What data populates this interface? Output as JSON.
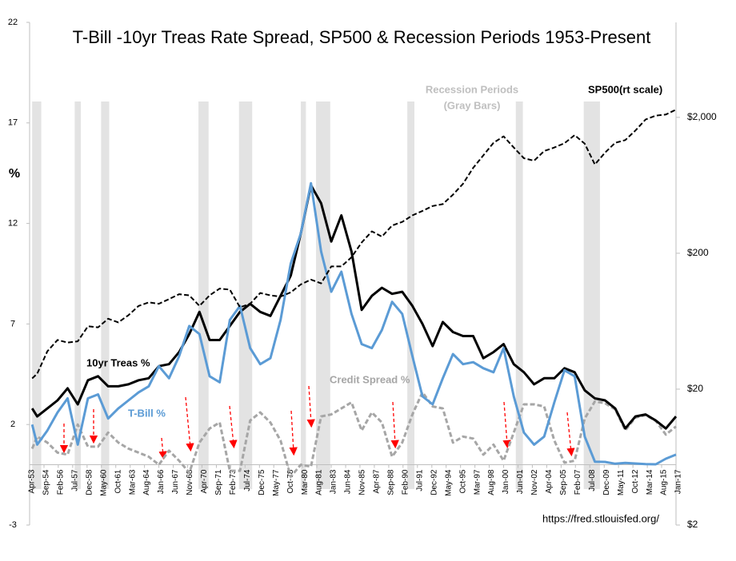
{
  "chart_data": {
    "type": "line",
    "title": "T-Bill -10yr Treas Rate Spread, SP500 & Recession Periods 1953-Present",
    "y_label": "%",
    "source": "https://fred.stlouisfed.org/",
    "recession_label": [
      "Recession Periods",
      "(Gray Bars)"
    ],
    "recession_color": "#e3e3e3",
    "recessions": [
      [
        1953.5,
        1954.4
      ],
      [
        1957.7,
        1958.3
      ],
      [
        1960.3,
        1961.1
      ],
      [
        1969.9,
        1970.9
      ],
      [
        1973.9,
        1975.2
      ],
      [
        1980.0,
        1980.5
      ],
      [
        1981.5,
        1982.9
      ],
      [
        1990.5,
        1991.2
      ],
      [
        2001.2,
        2001.9
      ],
      [
        2007.9,
        2009.5
      ]
    ],
    "x": [
      1953.5,
      1954,
      1955,
      1956,
      1957,
      1958,
      1959,
      1960,
      1961,
      1962,
      1963,
      1964,
      1965,
      1966,
      1967,
      1968,
      1969,
      1970,
      1971,
      1972,
      1973,
      1974,
      1975,
      1976,
      1977,
      1978,
      1979,
      1980,
      1981,
      1982,
      1983,
      1984,
      1985,
      1986,
      1987,
      1988,
      1989,
      1990,
      1991,
      1992,
      1993,
      1994,
      1995,
      1996,
      1997,
      1998,
      1999,
      2000,
      2001,
      2002,
      2003,
      2004,
      2005,
      2006,
      2007,
      2008,
      2009,
      2010,
      2011,
      2012,
      2013,
      2014,
      2015,
      2016,
      2017
    ],
    "xlim": [
      1953.25,
      2017.0
    ],
    "xticks": [
      {
        "value": 1953.25,
        "label": "Apr-53"
      },
      {
        "value": 1954.67,
        "label": "Sep-54"
      },
      {
        "value": 1956.08,
        "label": "Feb-56"
      },
      {
        "value": 1957.5,
        "label": "Jul-57"
      },
      {
        "value": 1958.92,
        "label": "Dec-58"
      },
      {
        "value": 1960.33,
        "label": "May-60"
      },
      {
        "value": 1961.75,
        "label": "Oct-61"
      },
      {
        "value": 1963.17,
        "label": "Mar-63"
      },
      {
        "value": 1964.58,
        "label": "Aug-64"
      },
      {
        "value": 1966.0,
        "label": "Jan-66"
      },
      {
        "value": 1967.42,
        "label": "Jun-67"
      },
      {
        "value": 1968.83,
        "label": "Nov-68"
      },
      {
        "value": 1970.25,
        "label": "Apr-70"
      },
      {
        "value": 1971.67,
        "label": "Sep-71"
      },
      {
        "value": 1973.08,
        "label": "Feb-73"
      },
      {
        "value": 1974.5,
        "label": "Jul-74"
      },
      {
        "value": 1975.92,
        "label": "Dec-75"
      },
      {
        "value": 1977.33,
        "label": "May-77"
      },
      {
        "value": 1978.75,
        "label": "Oct-78"
      },
      {
        "value": 1980.17,
        "label": "Mar-80"
      },
      {
        "value": 1981.58,
        "label": "Aug-81"
      },
      {
        "value": 1983.0,
        "label": "Jan-83"
      },
      {
        "value": 1984.42,
        "label": "Jun-84"
      },
      {
        "value": 1985.83,
        "label": "Nov-85"
      },
      {
        "value": 1987.25,
        "label": "Apr-87"
      },
      {
        "value": 1988.67,
        "label": "Sep-88"
      },
      {
        "value": 1990.08,
        "label": "Feb-90"
      },
      {
        "value": 1991.5,
        "label": "Jul-91"
      },
      {
        "value": 1992.92,
        "label": "Dec-92"
      },
      {
        "value": 1994.33,
        "label": "May-94"
      },
      {
        "value": 1995.75,
        "label": "Oct-95"
      },
      {
        "value": 1997.17,
        "label": "Mar-97"
      },
      {
        "value": 1998.58,
        "label": "Aug-98"
      },
      {
        "value": 2000.0,
        "label": "Jan-00"
      },
      {
        "value": 2001.42,
        "label": "Jun-01"
      },
      {
        "value": 2002.83,
        "label": "Nov-02"
      },
      {
        "value": 2004.25,
        "label": "Apr-04"
      },
      {
        "value": 2005.67,
        "label": "Sep-05"
      },
      {
        "value": 2007.08,
        "label": "Feb-07"
      },
      {
        "value": 2008.5,
        "label": "Jul-08"
      },
      {
        "value": 2009.92,
        "label": "Dec-09"
      },
      {
        "value": 2011.33,
        "label": "May-11"
      },
      {
        "value": 2012.75,
        "label": "Oct-12"
      },
      {
        "value": 2014.17,
        "label": "Mar-14"
      },
      {
        "value": 2015.58,
        "label": "Aug-15"
      },
      {
        "value": 2017.0,
        "label": "Jan-17"
      }
    ],
    "ylim": [
      -3,
      22
    ],
    "yticks": [
      -3,
      2,
      7,
      12,
      17,
      22
    ],
    "y2_scale": "log",
    "y2lim": [
      2,
      10000
    ],
    "y2ticks": [
      {
        "value": 2,
        "label": "$2"
      },
      {
        "value": 20,
        "label": "$20"
      },
      {
        "value": 200,
        "label": "$200"
      },
      {
        "value": 2000,
        "label": "$2,000"
      }
    ],
    "series": [
      {
        "name": "Credit Spread %",
        "color": "#a6a6a6",
        "dash": true,
        "width": 3,
        "values": [
          0.8,
          1.4,
          1.1,
          0.6,
          0.5,
          2.0,
          0.9,
          0.9,
          1.6,
          1.1,
          0.8,
          0.6,
          0.4,
          0.0,
          0.7,
          0.2,
          -0.4,
          1.1,
          1.8,
          2.1,
          -0.3,
          -0.3,
          2.2,
          2.6,
          2.1,
          1.2,
          -0.6,
          0.0,
          -0.1,
          2.4,
          2.5,
          2.8,
          3.1,
          1.7,
          2.6,
          2.1,
          0.4,
          1.1,
          2.5,
          3.6,
          2.9,
          2.8,
          1.1,
          1.4,
          1.3,
          0.5,
          1.0,
          0.2,
          1.6,
          3.0,
          3.0,
          2.9,
          1.2,
          0.1,
          0.2,
          2.3,
          3.15,
          3.06,
          2.75,
          1.71,
          2.34,
          2.47,
          2.18,
          1.5,
          1.9
        ]
      },
      {
        "name": "10yr Treas %",
        "color": "#000000",
        "dash": false,
        "width": 3,
        "values": [
          2.8,
          2.4,
          2.8,
          3.2,
          3.8,
          3.0,
          4.2,
          4.4,
          3.9,
          3.9,
          4.0,
          4.2,
          4.3,
          4.9,
          5.0,
          5.6,
          6.5,
          7.6,
          6.2,
          6.2,
          6.9,
          7.6,
          8.0,
          7.6,
          7.4,
          8.4,
          9.4,
          11.5,
          13.9,
          13.0,
          11.1,
          12.4,
          10.6,
          7.7,
          8.4,
          8.8,
          8.5,
          8.6,
          7.9,
          7.0,
          5.9,
          7.1,
          6.6,
          6.4,
          6.4,
          5.3,
          5.6,
          6.0,
          5.0,
          4.6,
          4.0,
          4.3,
          4.3,
          4.8,
          4.6,
          3.7,
          3.3,
          3.2,
          2.8,
          1.8,
          2.4,
          2.5,
          2.2,
          1.8,
          2.4
        ]
      },
      {
        "name": "T-Bill %",
        "color": "#5b9bd5",
        "dash": false,
        "width": 3,
        "values": [
          2.0,
          1.0,
          1.7,
          2.6,
          3.3,
          1.0,
          3.3,
          3.5,
          2.3,
          2.8,
          3.2,
          3.6,
          3.9,
          4.9,
          4.3,
          5.4,
          6.9,
          6.5,
          4.4,
          4.1,
          7.2,
          7.9,
          5.8,
          5.0,
          5.3,
          7.2,
          10.0,
          11.5,
          14.0,
          10.6,
          8.6,
          9.6,
          7.5,
          6.0,
          5.8,
          6.7,
          8.1,
          7.5,
          5.4,
          3.4,
          3.0,
          4.3,
          5.5,
          5.0,
          5.1,
          4.8,
          4.6,
          5.8,
          3.4,
          1.6,
          1.0,
          1.4,
          3.1,
          4.7,
          4.4,
          1.4,
          0.15,
          0.14,
          0.05,
          0.09,
          0.06,
          0.03,
          0.02,
          0.3,
          0.5
        ]
      },
      {
        "name": "SP500(rt scale)",
        "color": "#000000",
        "dash": true,
        "width": 2,
        "axis": "y2",
        "values": [
          24,
          26,
          38,
          46,
          44,
          45,
          58,
          57,
          66,
          62,
          70,
          82,
          87,
          85,
          92,
          100,
          98,
          82,
          98,
          110,
          108,
          80,
          85,
          102,
          98,
          96,
          103,
          118,
          128,
          120,
          160,
          160,
          187,
          240,
          290,
          265,
          320,
          340,
          380,
          410,
          445,
          460,
          540,
          650,
          850,
          1050,
          1300,
          1450,
          1200,
          1000,
          960,
          1130,
          1200,
          1290,
          1480,
          1280,
          900,
          1100,
          1300,
          1360,
          1600,
          1930,
          2060,
          2100,
          2280
        ]
      }
    ]
  }
}
